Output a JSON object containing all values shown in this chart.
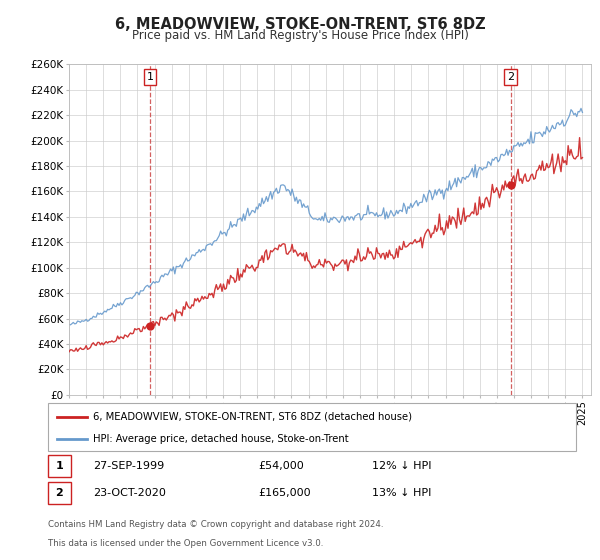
{
  "title": "6, MEADOWVIEW, STOKE-ON-TRENT, ST6 8DZ",
  "subtitle": "Price paid vs. HM Land Registry's House Price Index (HPI)",
  "ylim": [
    0,
    260000
  ],
  "yticks": [
    0,
    20000,
    40000,
    60000,
    80000,
    100000,
    120000,
    140000,
    160000,
    180000,
    200000,
    220000,
    240000,
    260000
  ],
  "ytick_labels": [
    "£0",
    "£20K",
    "£40K",
    "£60K",
    "£80K",
    "£100K",
    "£120K",
    "£140K",
    "£160K",
    "£180K",
    "£200K",
    "£220K",
    "£240K",
    "£260K"
  ],
  "hpi_color": "#6699cc",
  "price_color": "#cc2222",
  "vline_color": "#cc4444",
  "grid_color": "#cccccc",
  "sale1": {
    "date_num": 1999.74,
    "price": 54000,
    "label": "1",
    "date_str": "27-SEP-1999",
    "pct": "12% ↓ HPI"
  },
  "sale2": {
    "date_num": 2020.81,
    "price": 165000,
    "label": "2",
    "date_str": "23-OCT-2020",
    "pct": "13% ↓ HPI"
  },
  "legend_line1": "6, MEADOWVIEW, STOKE-ON-TRENT, ST6 8DZ (detached house)",
  "legend_line2": "HPI: Average price, detached house, Stoke-on-Trent",
  "footnote1": "Contains HM Land Registry data © Crown copyright and database right 2024.",
  "footnote2": "This data is licensed under the Open Government Licence v3.0.",
  "xmin": 1995.0,
  "xmax": 2025.5
}
